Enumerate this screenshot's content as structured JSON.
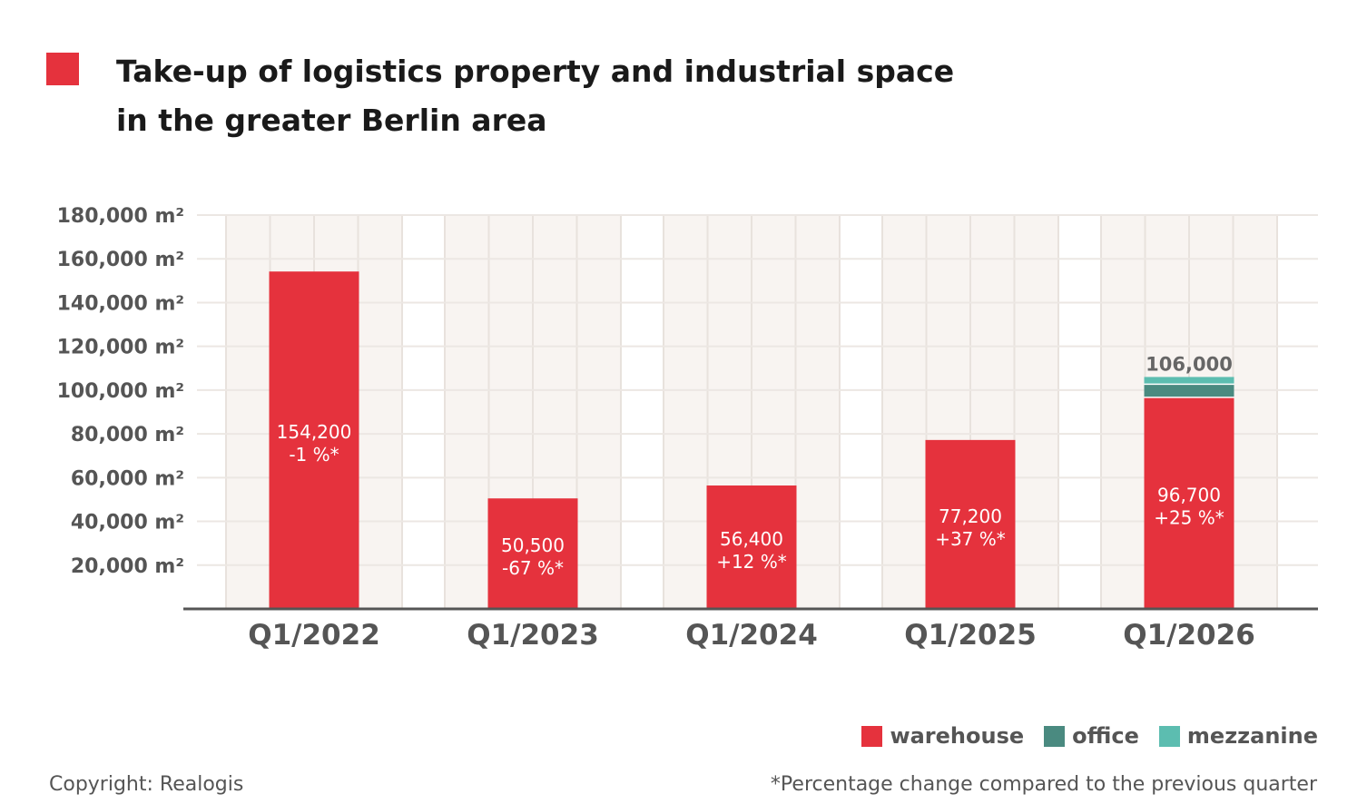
{
  "chart_data": {
    "type": "bar",
    "stacked": true,
    "title": "Take-up of logistics property and industrial space in the greater Berlin area",
    "title_lines": [
      "Take-up of logistics property and industrial space",
      "in the greater Berlin area"
    ],
    "categories": [
      "Q1/2022",
      "Q1/2023",
      "Q1/2024",
      "Q1/2025",
      "Q1/2026"
    ],
    "series": [
      {
        "name": "warehouse",
        "color": "#e5323d",
        "values": [
          154200,
          50500,
          56400,
          77200,
          96700
        ]
      },
      {
        "name": "office",
        "color": "#4a8a80",
        "values": [
          0,
          0,
          0,
          0,
          6000
        ]
      },
      {
        "name": "mezzanine",
        "color": "#5cbdb0",
        "values": [
          0,
          0,
          0,
          0,
          3300
        ]
      }
    ],
    "bar_labels": [
      {
        "value": "154,200",
        "change": "-1 %*"
      },
      {
        "value": "50,500",
        "change": "-67 %*"
      },
      {
        "value": "56,400",
        "change": "+12 %*"
      },
      {
        "value": "77,200",
        "change": "+37 %*"
      },
      {
        "value": "96,700",
        "change": "+25 %*"
      }
    ],
    "totals": [
      "",
      "",
      "",
      "",
      "106,000"
    ],
    "yticks": [
      20000,
      40000,
      60000,
      80000,
      100000,
      120000,
      140000,
      160000,
      180000
    ],
    "ytick_labels": [
      "20,000 m²",
      "40,000 m²",
      "60,000 m²",
      "80,000 m²",
      "100,000 m²",
      "120,000 m²",
      "140,000 m²",
      "160,000 m²",
      "180,000 m²"
    ],
    "ylim": [
      0,
      180000
    ],
    "grid": true,
    "legend_position": "bottom-right",
    "xlabel": "",
    "ylabel": ""
  },
  "footer": {
    "copyright": "Copyright: Realogis",
    "footnote": "*Percentage change compared to the previous quarter"
  }
}
